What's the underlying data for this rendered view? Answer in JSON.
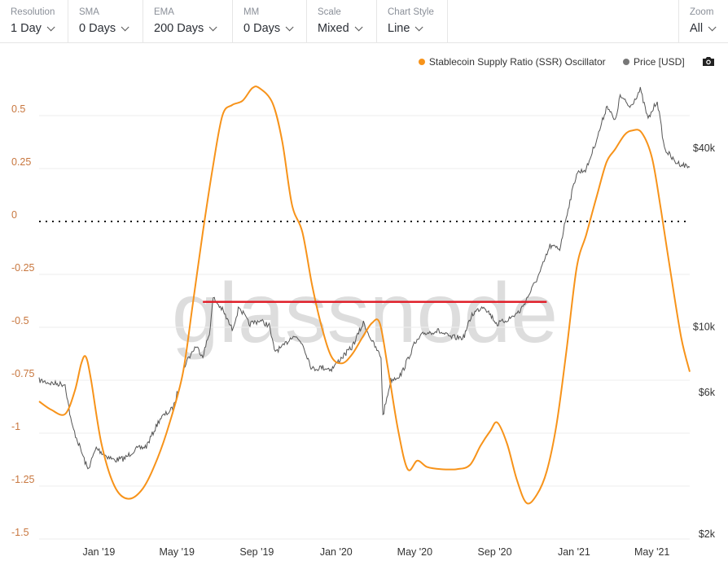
{
  "toolbar": {
    "resolution": {
      "label": "Resolution",
      "value": "1 Day"
    },
    "sma": {
      "label": "SMA",
      "value": "0 Days"
    },
    "ema": {
      "label": "EMA",
      "value": "200 Days"
    },
    "mm": {
      "label": "MM",
      "value": "0 Days"
    },
    "scale": {
      "label": "Scale",
      "value": "Mixed"
    },
    "chart_style": {
      "label": "Chart Style",
      "value": "Line"
    },
    "zoom": {
      "label": "Zoom",
      "value": "All"
    }
  },
  "legend": {
    "ssr_label": "Stablecoin Supply Ratio (SSR) Oscillator",
    "price_label": "Price [USD]"
  },
  "watermark": "glassnode",
  "colors": {
    "ssr": "#f7931a",
    "price": "#555555",
    "resistance": "#e0202a",
    "left_axis": "#c8773f"
  },
  "icons": {
    "camera": "camera-icon"
  },
  "chart_data": {
    "type": "line",
    "title": "",
    "x_ticks": [
      "Jan '19",
      "May '19",
      "Sep '19",
      "Jan '20",
      "May '20",
      "Sep '20",
      "Jan '21",
      "May '21"
    ],
    "y_left": {
      "ticks": [
        "0.5",
        "0.25",
        "0",
        "-0.25",
        "-0.5",
        "-0.75",
        "-1",
        "-1.25",
        "-1.5"
      ],
      "range": [
        -1.5,
        0.6
      ]
    },
    "y_right": {
      "ticks": [
        "$40k",
        "$10k",
        "$6k",
        "$2k"
      ],
      "scale": "log"
    },
    "zero_line": "dotted",
    "series": [
      {
        "name": "Stablecoin Supply Ratio (SSR) Oscillator",
        "axis": "left",
        "points": [
          [
            "2018-10-01",
            -0.85
          ],
          [
            "2018-10-20",
            -0.89
          ],
          [
            "2018-11-10",
            -0.91
          ],
          [
            "2018-11-25",
            -0.8
          ],
          [
            "2018-12-05",
            -0.67
          ],
          [
            "2018-12-12",
            -0.64
          ],
          [
            "2018-12-20",
            -0.75
          ],
          [
            "2019-01-05",
            -1.05
          ],
          [
            "2019-01-25",
            -1.25
          ],
          [
            "2019-02-15",
            -1.31
          ],
          [
            "2019-03-10",
            -1.26
          ],
          [
            "2019-04-01",
            -1.12
          ],
          [
            "2019-04-20",
            -0.95
          ],
          [
            "2019-05-10",
            -0.72
          ],
          [
            "2019-05-25",
            -0.4
          ],
          [
            "2019-06-10",
            -0.05
          ],
          [
            "2019-06-25",
            0.25
          ],
          [
            "2019-07-10",
            0.5
          ],
          [
            "2019-07-25",
            0.55
          ],
          [
            "2019-08-10",
            0.57
          ],
          [
            "2019-08-25",
            0.63
          ],
          [
            "2019-09-05",
            0.63
          ],
          [
            "2019-09-25",
            0.56
          ],
          [
            "2019-10-10",
            0.38
          ],
          [
            "2019-10-25",
            0.08
          ],
          [
            "2019-11-10",
            -0.05
          ],
          [
            "2019-11-25",
            -0.3
          ],
          [
            "2019-12-10",
            -0.5
          ],
          [
            "2019-12-25",
            -0.64
          ],
          [
            "2020-01-10",
            -0.67
          ],
          [
            "2020-01-25",
            -0.63
          ],
          [
            "2020-02-10",
            -0.55
          ],
          [
            "2020-02-25",
            -0.48
          ],
          [
            "2020-03-08",
            -0.48
          ],
          [
            "2020-03-20",
            -0.68
          ],
          [
            "2020-04-05",
            -0.98
          ],
          [
            "2020-04-20",
            -1.17
          ],
          [
            "2020-05-05",
            -1.13
          ],
          [
            "2020-05-20",
            -1.16
          ],
          [
            "2020-06-10",
            -1.17
          ],
          [
            "2020-07-05",
            -1.17
          ],
          [
            "2020-07-25",
            -1.15
          ],
          [
            "2020-08-10",
            -1.06
          ],
          [
            "2020-08-25",
            -0.99
          ],
          [
            "2020-09-05",
            -0.95
          ],
          [
            "2020-09-20",
            -1.05
          ],
          [
            "2020-10-05",
            -1.22
          ],
          [
            "2020-10-20",
            -1.33
          ],
          [
            "2020-11-05",
            -1.29
          ],
          [
            "2020-11-20",
            -1.18
          ],
          [
            "2020-12-05",
            -0.96
          ],
          [
            "2020-12-20",
            -0.62
          ],
          [
            "2021-01-05",
            -0.22
          ],
          [
            "2021-01-20",
            -0.06
          ],
          [
            "2021-02-05",
            0.12
          ],
          [
            "2021-02-20",
            0.28
          ],
          [
            "2021-03-05",
            0.34
          ],
          [
            "2021-03-20",
            0.41
          ],
          [
            "2021-04-01",
            0.43
          ],
          [
            "2021-04-15",
            0.42
          ],
          [
            "2021-05-01",
            0.3
          ],
          [
            "2021-05-15",
            0.05
          ],
          [
            "2021-05-30",
            -0.25
          ],
          [
            "2021-06-15",
            -0.55
          ],
          [
            "2021-06-28",
            -0.71
          ]
        ]
      },
      {
        "name": "Price [USD]",
        "axis": "right",
        "points": [
          [
            "2018-10-01",
            6600
          ],
          [
            "2018-10-20",
            6450
          ],
          [
            "2018-11-10",
            6400
          ],
          [
            "2018-11-20",
            4700
          ],
          [
            "2018-12-05",
            3800
          ],
          [
            "2018-12-15",
            3300
          ],
          [
            "2018-12-28",
            3900
          ],
          [
            "2019-01-10",
            3700
          ],
          [
            "2019-01-25",
            3550
          ],
          [
            "2019-02-10",
            3600
          ],
          [
            "2019-02-25",
            3850
          ],
          [
            "2019-03-15",
            3950
          ],
          [
            "2019-04-05",
            4900
          ],
          [
            "2019-04-25",
            5300
          ],
          [
            "2019-05-15",
            7600
          ],
          [
            "2019-05-30",
            8600
          ],
          [
            "2019-06-10",
            8000
          ],
          [
            "2019-06-20",
            9500
          ],
          [
            "2019-06-26",
            12500
          ],
          [
            "2019-07-10",
            11400
          ],
          [
            "2019-07-25",
            9800
          ],
          [
            "2019-08-05",
            11700
          ],
          [
            "2019-08-20",
            10200
          ],
          [
            "2019-09-05",
            10500
          ],
          [
            "2019-09-20",
            10100
          ],
          [
            "2019-09-28",
            8300
          ],
          [
            "2019-10-10",
            8500
          ],
          [
            "2019-10-27",
            9400
          ],
          [
            "2019-11-10",
            8800
          ],
          [
            "2019-11-25",
            7200
          ],
          [
            "2019-12-10",
            7300
          ],
          [
            "2019-12-25",
            7200
          ],
          [
            "2020-01-10",
            7900
          ],
          [
            "2020-01-25",
            8500
          ],
          [
            "2020-02-12",
            10300
          ],
          [
            "2020-02-28",
            8700
          ],
          [
            "2020-03-10",
            7900
          ],
          [
            "2020-03-13",
            5000
          ],
          [
            "2020-03-25",
            6600
          ],
          [
            "2020-04-10",
            6900
          ],
          [
            "2020-04-30",
            8700
          ],
          [
            "2020-05-15",
            9500
          ],
          [
            "2020-06-05",
            9700
          ],
          [
            "2020-06-25",
            9200
          ],
          [
            "2020-07-15",
            9200
          ],
          [
            "2020-07-28",
            11000
          ],
          [
            "2020-08-15",
            11800
          ],
          [
            "2020-09-05",
            10200
          ],
          [
            "2020-09-25",
            10700
          ],
          [
            "2020-10-10",
            11300
          ],
          [
            "2020-10-25",
            13000
          ],
          [
            "2020-11-10",
            15300
          ],
          [
            "2020-11-25",
            18700
          ],
          [
            "2020-12-10",
            18300
          ],
          [
            "2020-12-20",
            23500
          ],
          [
            "2021-01-05",
            33000
          ],
          [
            "2021-01-20",
            34000
          ],
          [
            "2021-02-08",
            45000
          ],
          [
            "2021-02-21",
            56000
          ],
          [
            "2021-03-05",
            49000
          ],
          [
            "2021-03-13",
            60000
          ],
          [
            "2021-03-28",
            55000
          ],
          [
            "2021-04-13",
            63000
          ],
          [
            "2021-04-25",
            50000
          ],
          [
            "2021-05-09",
            58000
          ],
          [
            "2021-05-20",
            40000
          ],
          [
            "2021-06-05",
            36000
          ],
          [
            "2021-06-20",
            35000
          ],
          [
            "2021-06-28",
            34500
          ]
        ]
      }
    ],
    "annotation": {
      "type": "horizontal-line",
      "color": "#e0202a",
      "x_start": "2019-06-10",
      "x_end": "2020-11-20",
      "y_value": -0.38,
      "axis": "left"
    }
  }
}
